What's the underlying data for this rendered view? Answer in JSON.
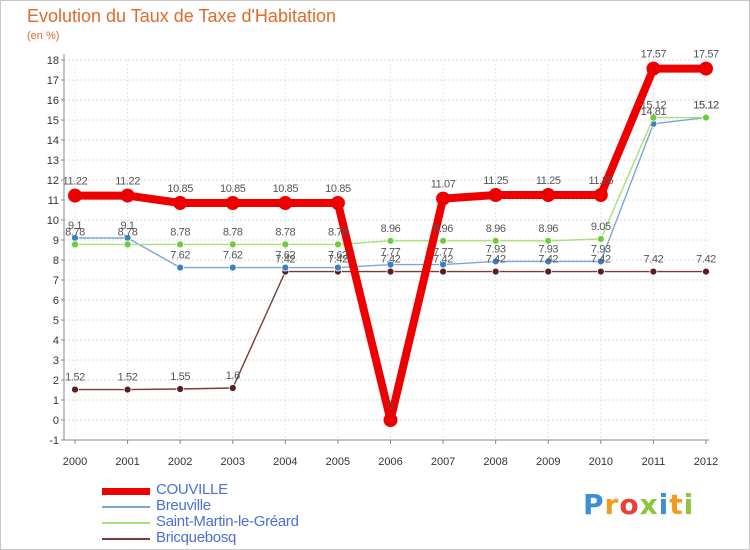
{
  "chart_data": {
    "type": "line",
    "title": "Evolution du Taux de Taxe d'Habitation",
    "subtitle": "(en %)",
    "xlabel": "",
    "ylabel": "",
    "categories": [
      "2000",
      "2001",
      "2002",
      "2003",
      "2004",
      "2005",
      "2006",
      "2007",
      "2008",
      "2009",
      "2010",
      "2011",
      "2012"
    ],
    "ylim": [
      -1,
      18
    ],
    "yticks": [
      "-1",
      "0",
      "1",
      "2",
      "3",
      "4",
      "5",
      "6",
      "7",
      "8",
      "9",
      "10",
      "11",
      "12",
      "13",
      "14",
      "15",
      "16",
      "17",
      "18"
    ],
    "grid": true,
    "legend_position": "bottom-left",
    "series": [
      {
        "name": "COUVILLE",
        "color": "#ee0000",
        "marker_color": "#ee0000",
        "values": [
          11.22,
          11.22,
          10.85,
          10.85,
          10.85,
          10.85,
          0,
          11.07,
          11.25,
          11.25,
          11.25,
          17.57,
          17.57
        ],
        "labels": [
          "11.22",
          "11.22",
          "10.85",
          "10.85",
          "10.85",
          "10.85",
          "0",
          "11.07",
          "11.25",
          "11.25",
          "11.25",
          "17.57",
          "17.57"
        ]
      },
      {
        "name": "Breuville",
        "color": "#7aa7d6",
        "marker_color": "#3d7fc4",
        "values": [
          9.1,
          9.1,
          7.62,
          7.62,
          7.62,
          7.62,
          7.77,
          7.77,
          7.93,
          7.93,
          7.93,
          14.81,
          15.12
        ],
        "labels": [
          "9.1",
          "9.1",
          "7.62",
          "7.62",
          "7.62",
          "7.62",
          "7.77",
          "7.77",
          "7.93",
          "7.93",
          "7.93",
          "14.81",
          "15.12"
        ]
      },
      {
        "name": "Saint-Martin-le-Gréard",
        "color": "#a8e07a",
        "marker_color": "#6ccc3a",
        "values": [
          8.78,
          8.78,
          8.78,
          8.78,
          8.78,
          8.78,
          8.96,
          8.96,
          8.96,
          8.96,
          9.05,
          15.12,
          15.12
        ],
        "labels": [
          "8.78",
          "8.78",
          "8.78",
          "8.78",
          "8.78",
          "8.78",
          "8.96",
          "8.96",
          "8.96",
          "8.96",
          "9.05",
          "15.12",
          "15.12"
        ]
      },
      {
        "name": "Bricquebosq",
        "color": "#7a3a3a",
        "marker_color": "#5a1e1e",
        "values": [
          1.52,
          1.52,
          1.55,
          1.6,
          7.42,
          7.42,
          7.42,
          7.42,
          7.42,
          7.42,
          7.42,
          7.42,
          7.42
        ],
        "labels": [
          "1.52",
          "1.52",
          "1.55",
          "1.6",
          "7.42",
          "7.42",
          "7.42",
          "7.42",
          "7.42",
          "7.42",
          "7.42",
          "7.42",
          "7.42"
        ]
      }
    ]
  },
  "logo": {
    "letters": [
      "P",
      "r",
      "o",
      "x",
      "i",
      "t",
      "i"
    ],
    "text": "Proxiti"
  }
}
